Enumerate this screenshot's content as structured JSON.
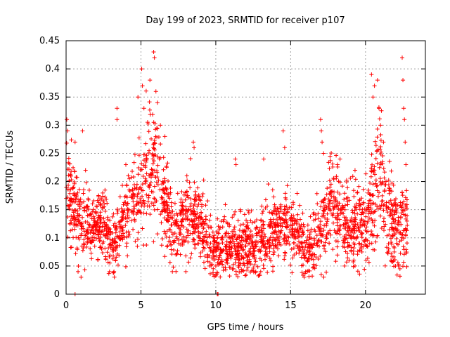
{
  "chart_data": {
    "type": "scatter",
    "title": "Day 199 of 2023, SRMTID for receiver p107",
    "xlabel": "GPS time / hours",
    "ylabel": "SRMTID / TECUs",
    "xlim": [
      0,
      24
    ],
    "ylim": [
      0,
      0.45
    ],
    "xticks": [
      0,
      5,
      10,
      15,
      20
    ],
    "xtick_labels": [
      "0",
      "5",
      "10",
      "15",
      "20"
    ],
    "yticks": [
      0,
      0.05,
      0.1,
      0.15,
      0.2,
      0.25,
      0.3,
      0.35,
      0.4,
      0.45
    ],
    "ytick_labels": [
      "0",
      "0.05",
      "0.1",
      "0.15",
      "0.2",
      "0.25",
      "0.3",
      "0.35",
      "0.4",
      "0.45"
    ],
    "grid": true,
    "marker": "+",
    "series_color": "#ff0000",
    "envelope_hours": [
      0,
      0.5,
      1,
      1.5,
      2,
      2.5,
      3,
      3.5,
      4,
      4.5,
      5,
      5.5,
      6,
      6.5,
      7,
      7.5,
      8,
      8.5,
      9,
      9.5,
      10,
      10.5,
      11,
      11.5,
      12,
      12.5,
      13,
      13.5,
      14,
      14.5,
      15,
      15.5,
      16,
      16.5,
      17,
      17.5,
      18,
      18.5,
      19,
      19.5,
      20,
      20.5,
      21,
      21.5,
      22,
      22.5,
      22.8
    ],
    "envelope_center": [
      0.2,
      0.15,
      0.13,
      0.12,
      0.12,
      0.13,
      0.09,
      0.1,
      0.14,
      0.15,
      0.18,
      0.22,
      0.23,
      0.16,
      0.12,
      0.11,
      0.14,
      0.14,
      0.12,
      0.1,
      0.07,
      0.09,
      0.08,
      0.08,
      0.09,
      0.08,
      0.09,
      0.1,
      0.12,
      0.13,
      0.12,
      0.11,
      0.08,
      0.09,
      0.12,
      0.15,
      0.16,
      0.13,
      0.11,
      0.12,
      0.12,
      0.17,
      0.2,
      0.14,
      0.12,
      0.11,
      0.14
    ],
    "envelope_spread": [
      0.05,
      0.04,
      0.04,
      0.03,
      0.03,
      0.03,
      0.03,
      0.03,
      0.04,
      0.04,
      0.05,
      0.06,
      0.06,
      0.05,
      0.04,
      0.03,
      0.04,
      0.04,
      0.03,
      0.03,
      0.03,
      0.03,
      0.03,
      0.03,
      0.03,
      0.03,
      0.03,
      0.03,
      0.03,
      0.03,
      0.03,
      0.03,
      0.03,
      0.03,
      0.04,
      0.05,
      0.05,
      0.04,
      0.04,
      0.04,
      0.04,
      0.05,
      0.06,
      0.05,
      0.04,
      0.04,
      0.05
    ],
    "outlier_points": [
      [
        0.05,
        0.31
      ],
      [
        0.1,
        0.29
      ],
      [
        0.6,
        0.27
      ],
      [
        1.1,
        0.29
      ],
      [
        1.3,
        0.22
      ],
      [
        3.4,
        0.33
      ],
      [
        3.4,
        0.31
      ],
      [
        4.8,
        0.35
      ],
      [
        5.05,
        0.4
      ],
      [
        5.1,
        0.37
      ],
      [
        5.2,
        0.33
      ],
      [
        5.6,
        0.38
      ],
      [
        5.85,
        0.43
      ],
      [
        5.9,
        0.42
      ],
      [
        6.0,
        0.36
      ],
      [
        6.1,
        0.34
      ],
      [
        6.3,
        0.3
      ],
      [
        6.6,
        0.28
      ],
      [
        8.5,
        0.27
      ],
      [
        8.55,
        0.26
      ],
      [
        11.3,
        0.24
      ],
      [
        11.35,
        0.23
      ],
      [
        13.2,
        0.24
      ],
      [
        14.5,
        0.29
      ],
      [
        14.6,
        0.26
      ],
      [
        17.0,
        0.31
      ],
      [
        17.05,
        0.29
      ],
      [
        17.1,
        0.27
      ],
      [
        17.2,
        0.25
      ],
      [
        18.3,
        0.24
      ],
      [
        19.3,
        0.22
      ],
      [
        20.4,
        0.39
      ],
      [
        20.5,
        0.35
      ],
      [
        20.6,
        0.37
      ],
      [
        20.8,
        0.38
      ],
      [
        20.9,
        0.33
      ],
      [
        21.0,
        0.3
      ],
      [
        21.2,
        0.27
      ],
      [
        22.45,
        0.42
      ],
      [
        22.5,
        0.38
      ],
      [
        22.55,
        0.33
      ],
      [
        22.6,
        0.31
      ],
      [
        22.65,
        0.27
      ],
      [
        22.7,
        0.23
      ],
      [
        0.6,
        0.0
      ],
      [
        10.1,
        0.0
      ],
      [
        10.15,
        0.0
      ],
      [
        0.8,
        0.04
      ],
      [
        1.0,
        0.03
      ],
      [
        2.9,
        0.04
      ],
      [
        3.2,
        0.04
      ],
      [
        7.1,
        0.04
      ],
      [
        8.0,
        0.04
      ],
      [
        9.6,
        0.05
      ],
      [
        10.0,
        0.05
      ],
      [
        11.7,
        0.04
      ],
      [
        13.0,
        0.04
      ],
      [
        15.9,
        0.03
      ],
      [
        16.0,
        0.04
      ],
      [
        18.6,
        0.05
      ],
      [
        19.3,
        0.05
      ],
      [
        21.7,
        0.06
      ],
      [
        22.2,
        0.05
      ],
      [
        22.3,
        0.045
      ]
    ],
    "random_seed": 199
  }
}
